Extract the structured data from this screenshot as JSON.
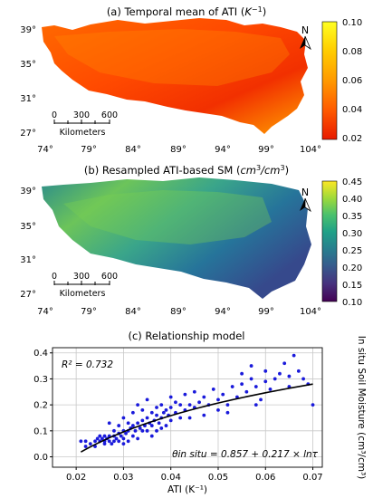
{
  "panels": {
    "a": {
      "title_main": "(a) Temporal mean of ATI (",
      "title_unit": "K",
      "title_exp": "−1",
      "title_close": ")",
      "lat_ticks": [
        "39°",
        "35°",
        "31°",
        "27°"
      ],
      "lon_ticks": [
        "74°",
        "79°",
        "84°",
        "89°",
        "94°",
        "99°",
        "104°"
      ],
      "colorbar_ticks": [
        "0.10",
        "0.08",
        "0.06",
        "0.04",
        "0.02"
      ],
      "colorbar_colors": [
        "#ffff22",
        "#ffcc00",
        "#ff9900",
        "#ff5a00",
        "#e81a00"
      ],
      "north_label": "N",
      "scalebar_ticks": [
        "0",
        "300",
        "600"
      ],
      "scalebar_unit": "Kilometers"
    },
    "b": {
      "title_main": "(b) Resampled ATI-based SM (",
      "title_unit": "cm",
      "title_unit_exp": "3",
      "title_slash": "/",
      "title_unit2": "cm",
      "title_unit2_exp": "3",
      "title_close": ")",
      "lat_ticks": [
        "39°",
        "35°",
        "31°",
        "27°"
      ],
      "lon_ticks": [
        "74°",
        "79°",
        "84°",
        "89°",
        "94°",
        "99°",
        "104°"
      ],
      "colorbar_ticks": [
        "0.45",
        "0.40",
        "0.35",
        "0.30",
        "0.25",
        "0.20",
        "0.15",
        "0.10"
      ],
      "colorbar_colors": [
        "#fde725",
        "#9fda3a",
        "#4ac16d",
        "#1fa187",
        "#277f8e",
        "#365c8d",
        "#46327e",
        "#440154"
      ],
      "north_label": "N",
      "scalebar_ticks": [
        "0",
        "300",
        "600"
      ],
      "scalebar_unit": "Kilometers"
    }
  },
  "chart_data": {
    "type": "scatter",
    "title": "(c) Relationship model",
    "xlabel": "ATI (K⁻¹)",
    "ylabel": "In situ Soil Moisture (cm³/cm³)",
    "xlim": [
      0.015,
      0.072
    ],
    "ylim": [
      -0.04,
      0.42
    ],
    "x_ticks": [
      "0.02",
      "0.03",
      "0.04",
      "0.05",
      "0.06",
      "0.07"
    ],
    "y_ticks": [
      "0.0",
      "0.1",
      "0.2",
      "0.3",
      "0.4"
    ],
    "grid": true,
    "r2_label": "R² = 0.732",
    "equation_label": "θin situ = 0.857 + 0.217 × lnτ",
    "fit": {
      "a": 0.857,
      "b": 0.217,
      "x_start": 0.021,
      "x_end": 0.07
    },
    "colors": {
      "points": "#1a1adb",
      "fit": "#000000"
    },
    "points": [
      [
        0.021,
        0.06
      ],
      [
        0.022,
        0.06
      ],
      [
        0.023,
        0.05
      ],
      [
        0.024,
        0.06
      ],
      [
        0.0245,
        0.07
      ],
      [
        0.025,
        0.06
      ],
      [
        0.025,
        0.08
      ],
      [
        0.0255,
        0.07
      ],
      [
        0.026,
        0.06
      ],
      [
        0.026,
        0.08
      ],
      [
        0.0265,
        0.07
      ],
      [
        0.027,
        0.06
      ],
      [
        0.027,
        0.08
      ],
      [
        0.0275,
        0.05
      ],
      [
        0.027,
        0.13
      ],
      [
        0.028,
        0.06
      ],
      [
        0.028,
        0.08
      ],
      [
        0.028,
        0.1
      ],
      [
        0.0285,
        0.07
      ],
      [
        0.029,
        0.06
      ],
      [
        0.029,
        0.09
      ],
      [
        0.029,
        0.12
      ],
      [
        0.0295,
        0.08
      ],
      [
        0.03,
        0.07
      ],
      [
        0.03,
        0.1
      ],
      [
        0.03,
        0.15
      ],
      [
        0.0305,
        0.09
      ],
      [
        0.031,
        0.06
      ],
      [
        0.031,
        0.1
      ],
      [
        0.031,
        0.13
      ],
      [
        0.0315,
        0.11
      ],
      [
        0.032,
        0.08
      ],
      [
        0.032,
        0.12
      ],
      [
        0.032,
        0.17
      ],
      [
        0.0325,
        0.1
      ],
      [
        0.033,
        0.07
      ],
      [
        0.033,
        0.13
      ],
      [
        0.033,
        0.2
      ],
      [
        0.0335,
        0.11
      ],
      [
        0.034,
        0.1
      ],
      [
        0.034,
        0.14
      ],
      [
        0.034,
        0.18
      ],
      [
        0.0345,
        0.12
      ],
      [
        0.035,
        0.1
      ],
      [
        0.035,
        0.15
      ],
      [
        0.035,
        0.22
      ],
      [
        0.0355,
        0.13
      ],
      [
        0.036,
        0.12
      ],
      [
        0.036,
        0.17
      ],
      [
        0.0365,
        0.14
      ],
      [
        0.037,
        0.1
      ],
      [
        0.037,
        0.16
      ],
      [
        0.037,
        0.19
      ],
      [
        0.0375,
        0.13
      ],
      [
        0.038,
        0.15
      ],
      [
        0.038,
        0.2
      ],
      [
        0.0385,
        0.17
      ],
      [
        0.039,
        0.12
      ],
      [
        0.039,
        0.18
      ],
      [
        0.0395,
        0.16
      ],
      [
        0.04,
        0.14
      ],
      [
        0.04,
        0.19
      ],
      [
        0.04,
        0.23
      ],
      [
        0.041,
        0.17
      ],
      [
        0.041,
        0.21
      ],
      [
        0.042,
        0.15
      ],
      [
        0.042,
        0.2
      ],
      [
        0.043,
        0.18
      ],
      [
        0.043,
        0.24
      ],
      [
        0.044,
        0.2
      ],
      [
        0.045,
        0.19
      ],
      [
        0.045,
        0.25
      ],
      [
        0.046,
        0.21
      ],
      [
        0.047,
        0.16
      ],
      [
        0.047,
        0.23
      ],
      [
        0.048,
        0.2
      ],
      [
        0.049,
        0.26
      ],
      [
        0.05,
        0.22
      ],
      [
        0.05,
        0.18
      ],
      [
        0.051,
        0.24
      ],
      [
        0.052,
        0.2
      ],
      [
        0.053,
        0.27
      ],
      [
        0.054,
        0.23
      ],
      [
        0.055,
        0.28
      ],
      [
        0.055,
        0.32
      ],
      [
        0.056,
        0.25
      ],
      [
        0.057,
        0.3
      ],
      [
        0.057,
        0.35
      ],
      [
        0.058,
        0.27
      ],
      [
        0.059,
        0.22
      ],
      [
        0.06,
        0.29
      ],
      [
        0.06,
        0.33
      ],
      [
        0.061,
        0.26
      ],
      [
        0.062,
        0.3
      ],
      [
        0.063,
        0.32
      ],
      [
        0.064,
        0.36
      ],
      [
        0.065,
        0.31
      ],
      [
        0.065,
        0.27
      ],
      [
        0.066,
        0.39
      ],
      [
        0.067,
        0.33
      ],
      [
        0.068,
        0.3
      ],
      [
        0.069,
        0.28
      ],
      [
        0.07,
        0.2
      ],
      [
        0.024,
        0.04
      ],
      [
        0.022,
        0.04
      ],
      [
        0.026,
        0.05
      ],
      [
        0.03,
        0.05
      ],
      [
        0.036,
        0.08
      ],
      [
        0.038,
        0.11
      ],
      [
        0.044,
        0.15
      ],
      [
        0.052,
        0.17
      ],
      [
        0.058,
        0.2
      ]
    ]
  }
}
